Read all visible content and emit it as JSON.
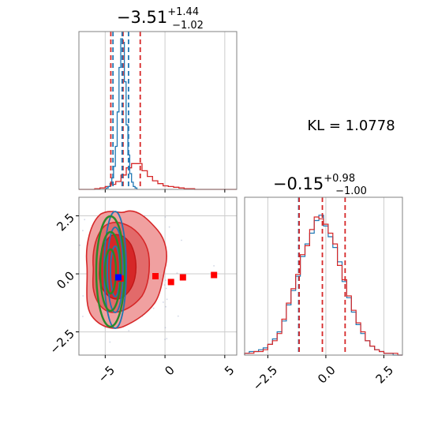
{
  "chart_data": {
    "type": "corner",
    "annotation": "KL = 1.0778",
    "colors": {
      "posterior_a": "#1f77b4",
      "posterior_b": "#d62728",
      "contour_green": "#2a8a2a",
      "marker_blue": "#0000ff",
      "marker_red": "#ff0000",
      "axes": "#808080",
      "grid": "#cccccc"
    },
    "panels": [
      {
        "id": "hist-param-1",
        "title": {
          "main": "−3.51",
          "sup": "+1.44",
          "sub": "−1.02"
        },
        "xlim": [
          -7.2,
          6.0
        ],
        "grid": true,
        "quantile_lines": {
          "red": [
            -4.53,
            -3.51,
            -2.07
          ],
          "blue": [
            -4.35,
            -3.58,
            -3.05
          ]
        },
        "red_hist": {
          "bin_start": -7.2,
          "bin_width": 0.44,
          "counts": [
            0,
            0,
            0,
            1,
            2,
            4,
            7,
            11,
            20,
            30,
            36,
            36,
            26,
            18,
            12,
            8,
            5,
            4,
            3,
            2,
            1,
            1,
            0,
            0,
            0,
            0,
            0,
            0,
            0,
            0
          ]
        },
        "blue_hist": {
          "bin_start": -4.9,
          "bin_width": 0.15,
          "counts": [
            2,
            4,
            8,
            16,
            32,
            60,
            108,
            170,
            210,
            205,
            150,
            90,
            48,
            22,
            10,
            4,
            2
          ]
        },
        "ymax": 220
      },
      {
        "id": "hist-param-2",
        "title": {
          "main": "−0.15",
          "sup": "+0.98",
          "sub": "−1.00"
        },
        "xlim": [
          -3.5,
          3.3
        ],
        "xticks": [
          -2.5,
          0.0,
          2.5
        ],
        "xtick_labels": [
          "−2.5",
          "0.0",
          "2.5"
        ],
        "grid": true,
        "quantile_lines": {
          "red": [
            -1.15,
            -0.15,
            0.83
          ],
          "blue": [
            -1.17
          ]
        },
        "red_hist": {
          "bin_start": -3.5,
          "bin_width": 0.2,
          "counts": [
            1,
            1,
            2,
            2,
            3,
            6,
            8,
            12,
            20,
            29,
            37,
            45,
            56,
            61,
            70,
            77,
            76,
            73,
            68,
            62,
            50,
            42,
            33,
            25,
            18,
            13,
            8,
            5,
            3,
            2,
            1,
            1,
            1,
            0
          ]
        },
        "blue_hist": {
          "bin_start": -3.5,
          "bin_width": 0.2,
          "counts": [
            1,
            2,
            2,
            3,
            4,
            6,
            9,
            13,
            19,
            28,
            36,
            44,
            55,
            62,
            68,
            75,
            78,
            72,
            66,
            60,
            52,
            41,
            32,
            24,
            17,
            12,
            8,
            5,
            3,
            2,
            1,
            1,
            0,
            0
          ]
        },
        "ymax": 88
      },
      {
        "id": "joint-param-1-param-2",
        "xlim": [
          -7.2,
          6.0
        ],
        "ylim": [
          -3.5,
          3.3
        ],
        "xticks": [
          -5,
          0,
          5
        ],
        "xtick_labels": [
          "−5",
          "0",
          "5"
        ],
        "yticks": [
          -2.5,
          0.0,
          2.5
        ],
        "ytick_labels": [
          "−2.5",
          "0.0",
          "2.5"
        ],
        "grid": true,
        "red_markers": [
          {
            "x": -0.8,
            "y": -0.1
          },
          {
            "x": 0.5,
            "y": -0.35
          },
          {
            "x": 1.5,
            "y": -0.15
          },
          {
            "x": 4.1,
            "y": -0.05
          },
          {
            "x": -3.7,
            "y": -0.2
          }
        ],
        "blue_markers": [
          {
            "x": -3.9,
            "y": -0.15
          }
        ]
      }
    ]
  }
}
